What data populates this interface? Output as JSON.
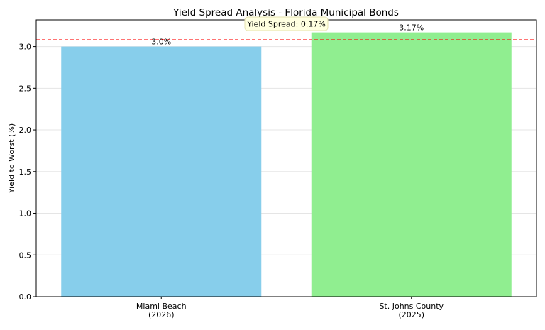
{
  "chart_data": {
    "type": "bar",
    "title": "Yield Spread Analysis - Florida Municipal Bonds",
    "xlabel": "",
    "ylabel": "Yield to Worst (%)",
    "categories": [
      "Miami Beach\n(2026)",
      "St. Johns County\n(2025)"
    ],
    "values": [
      3.0,
      3.17
    ],
    "data_labels": [
      "3.0%",
      "3.17%"
    ],
    "colors": [
      "#87ceeb",
      "#90ee90"
    ],
    "ylim": [
      0,
      3.32
    ],
    "yticks": [
      0.0,
      0.5,
      1.0,
      1.5,
      2.0,
      2.5,
      3.0
    ],
    "ytick_labels": [
      "0.0",
      "0.5",
      "1.0",
      "1.5",
      "2.0",
      "2.5",
      "3.0"
    ],
    "grid": true,
    "reference_line": {
      "value": 3.085,
      "color": "#ff0000",
      "style": "dashed"
    },
    "annotation": {
      "text": "Yield Spread: 0.17%",
      "background": "#ffffe0"
    }
  }
}
